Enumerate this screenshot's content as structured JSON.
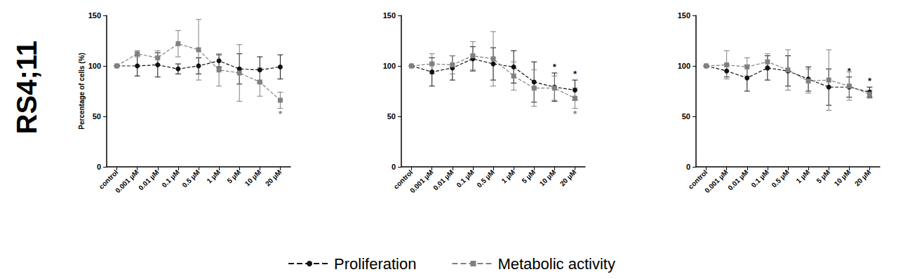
{
  "row_label": "RS4;11",
  "legend": "bottom",
  "chart_data": [
    {
      "type": "line",
      "y_label": "Percentage of cells (%)",
      "categories": [
        "control",
        "0.001 µM",
        "0.01 µM",
        "0.1 µM",
        "0.5 µM",
        "1 µM",
        "5 µM",
        "10 µM",
        "20 µM"
      ],
      "ylim": [
        0,
        150
      ],
      "yticks": [
        0,
        50,
        100,
        150
      ],
      "series": [
        {
          "name": "Proliferation",
          "color": "#111111",
          "marker": "circle",
          "line_style": "dashed",
          "values": [
            100,
            100,
            101,
            97,
            100,
            105,
            97,
            96,
            99
          ],
          "errors": [
            0,
            10,
            12,
            5,
            8,
            6,
            15,
            13,
            12
          ]
        },
        {
          "name": "Metabolic activity",
          "color": "#808080",
          "marker": "square",
          "line_style": "dashed",
          "values": [
            100,
            112,
            108,
            122,
            116,
            96,
            93,
            84,
            66
          ],
          "errors": [
            0,
            3,
            7,
            13,
            30,
            16,
            28,
            14,
            8
          ]
        }
      ],
      "annotations": [
        {
          "series": "Metabolic activity",
          "category": "20 µM",
          "text": "*",
          "position": "below"
        }
      ]
    },
    {
      "type": "line",
      "categories": [
        "control",
        "0.001 µM",
        "0.01 µM",
        "0.1 µM",
        "0.5 µM",
        "1 µM",
        "5 µM",
        "10 µM",
        "20 µM"
      ],
      "ylim": [
        0,
        150
      ],
      "yticks": [
        0,
        50,
        100,
        150
      ],
      "series": [
        {
          "name": "Proliferation",
          "color": "#111111",
          "marker": "circle",
          "line_style": "dashed",
          "values": [
            100,
            94,
            98,
            107,
            102,
            99,
            84,
            79,
            76
          ],
          "errors": [
            0,
            14,
            12,
            12,
            16,
            16,
            20,
            14,
            10
          ]
        },
        {
          "name": "Metabolic activity",
          "color": "#808080",
          "marker": "square",
          "line_style": "dashed",
          "values": [
            100,
            102,
            101,
            110,
            107,
            90,
            78,
            78,
            68
          ],
          "errors": [
            0,
            10,
            9,
            14,
            27,
            14,
            18,
            12,
            10
          ]
        }
      ],
      "annotations": [
        {
          "series": "Proliferation",
          "category": "10 µM",
          "text": "*",
          "position": "above"
        },
        {
          "series": "Proliferation",
          "category": "20 µM",
          "text": "*",
          "position": "above"
        },
        {
          "series": "Metabolic activity",
          "category": "20 µM",
          "text": "*",
          "position": "below"
        }
      ]
    },
    {
      "type": "line",
      "categories": [
        "control",
        "0.001 µM",
        "0.01 µM",
        "0.1 µM",
        "0.5 µM",
        "1 µM",
        "5 µM",
        "10 µM",
        "20 µM"
      ],
      "ylim": [
        0,
        150
      ],
      "yticks": [
        0,
        50,
        100,
        150
      ],
      "series": [
        {
          "name": "Proliferation",
          "color": "#111111",
          "marker": "circle",
          "line_style": "dashed",
          "values": [
            100,
            95,
            88,
            98,
            95,
            87,
            79,
            79,
            74
          ],
          "errors": [
            0,
            6,
            13,
            12,
            15,
            12,
            18,
            10,
            5
          ]
        },
        {
          "name": "Metabolic activity",
          "color": "#808080",
          "marker": "square",
          "line_style": "dashed",
          "values": [
            100,
            101,
            99,
            104,
            96,
            85,
            86,
            80,
            72
          ],
          "errors": [
            0,
            14,
            9,
            8,
            20,
            12,
            30,
            14,
            4
          ]
        }
      ],
      "annotations": [
        {
          "series": "Proliferation",
          "category": "10 µM",
          "text": "*",
          "position": "above"
        },
        {
          "series": "Proliferation",
          "category": "20 µM",
          "text": "*",
          "position": "above"
        }
      ]
    }
  ]
}
